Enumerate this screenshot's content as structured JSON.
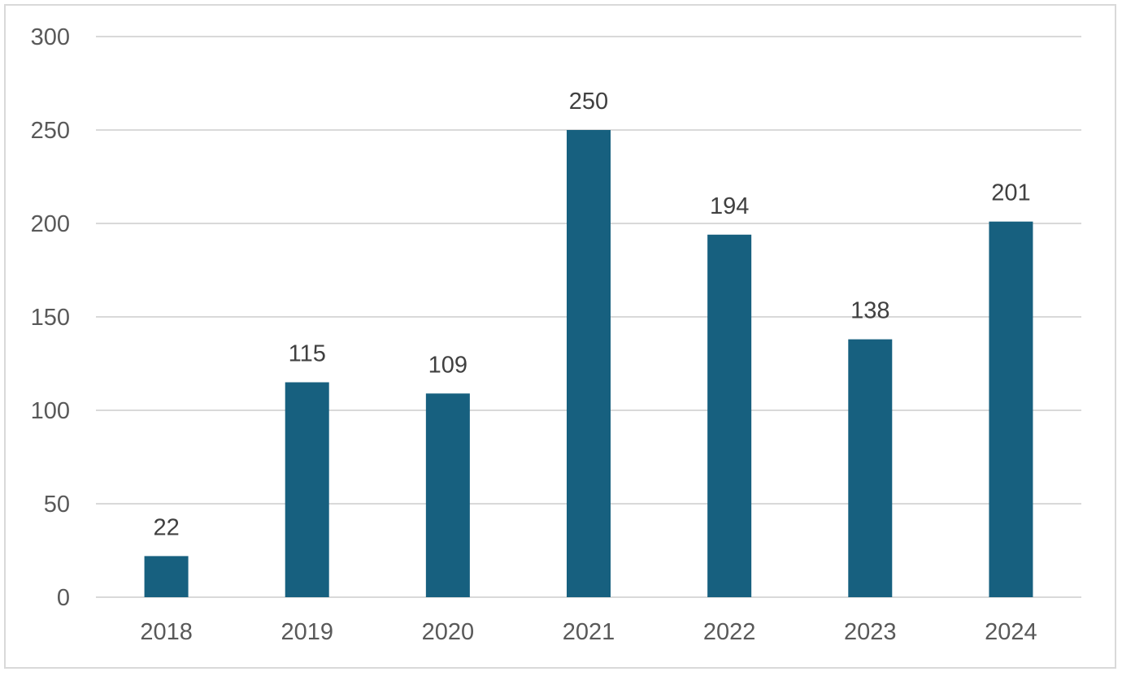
{
  "chart_data": {
    "type": "bar",
    "title": "",
    "xlabel": "",
    "ylabel": "",
    "categories": [
      "2018",
      "2019",
      "2020",
      "2021",
      "2022",
      "2023",
      "2024"
    ],
    "values": [
      22,
      115,
      109,
      250,
      194,
      138,
      201
    ],
    "ylim": [
      0,
      300
    ],
    "yticks": [
      0,
      50,
      100,
      150,
      200,
      250,
      300
    ],
    "grid": true,
    "legend": "none",
    "bar_color": "#17607f"
  }
}
